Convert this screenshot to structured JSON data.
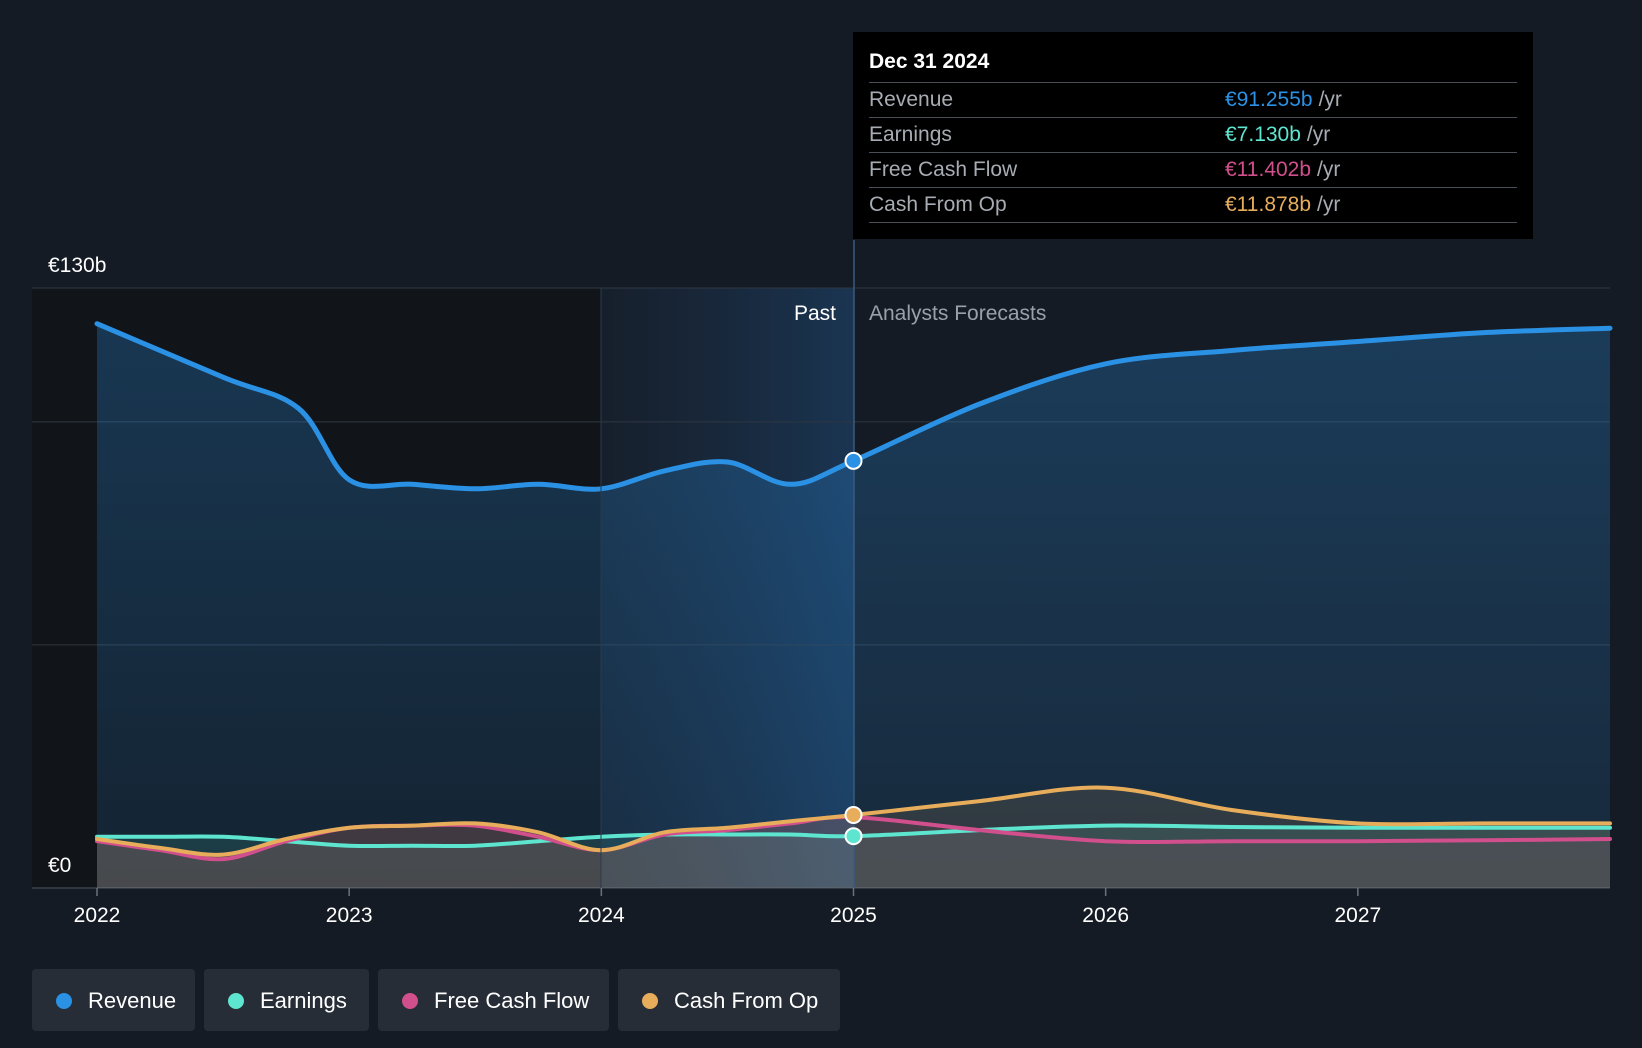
{
  "chart_data": {
    "type": "line",
    "y_axis": {
      "min": 0,
      "max": 130,
      "top_label": "€130b",
      "bottom_label": "€0"
    },
    "x_ticks": [
      "2022",
      "2023",
      "2024",
      "2025",
      "2026",
      "2027"
    ],
    "x_range": [
      2022,
      2028.0
    ],
    "divider_x": 2025,
    "past_label": "Past",
    "forecast_label": "Analysts Forecasts",
    "series": [
      {
        "name": "Revenue",
        "color": "#2a91e4",
        "x": [
          2022,
          2022.5,
          2022.8,
          2023,
          2023.25,
          2023.5,
          2023.75,
          2024,
          2024.25,
          2024.5,
          2024.75,
          2025,
          2025.5,
          2026,
          2026.5,
          2027,
          2027.5,
          2028.0
        ],
        "y": [
          122,
          110,
          103,
          87,
          86,
          85,
          86,
          85,
          89,
          91,
          86,
          91.255,
          104,
          113,
          116,
          118,
          120,
          121
        ]
      },
      {
        "name": "Earnings",
        "color": "#5ee5cf",
        "x": [
          2022,
          2022.25,
          2022.5,
          2022.75,
          2023,
          2023.25,
          2023.5,
          2023.75,
          2024,
          2024.25,
          2024.5,
          2024.75,
          2025,
          2025.5,
          2026,
          2026.5,
          2027,
          2027.5,
          2028.0
        ],
        "y": [
          7,
          7,
          7,
          6,
          5,
          5,
          5,
          6,
          7,
          7.5,
          7.5,
          7.5,
          7.13,
          8.5,
          9.5,
          9.2,
          9.0,
          9.0,
          9.0
        ]
      },
      {
        "name": "Free Cash Flow",
        "color": "#d14f8c",
        "x": [
          2022,
          2022.25,
          2022.5,
          2022.75,
          2023,
          2023.25,
          2023.5,
          2023.75,
          2024,
          2024.25,
          2024.5,
          2024.75,
          2025,
          2025.5,
          2026,
          2026.5,
          2027,
          2027.5,
          2028.0
        ],
        "y": [
          6,
          4,
          2,
          6,
          9,
          9.5,
          9.5,
          7,
          4,
          7.5,
          8.5,
          10,
          11.402,
          8.5,
          6,
          6,
          6,
          6.2,
          6.5
        ]
      },
      {
        "name": "Cash From Op",
        "color": "#e7ad5b",
        "x": [
          2022,
          2022.25,
          2022.5,
          2022.75,
          2023,
          2023.25,
          2023.5,
          2023.75,
          2024,
          2024.25,
          2024.5,
          2024.75,
          2025,
          2025.5,
          2026,
          2026.5,
          2027,
          2027.5,
          2028.0
        ],
        "y": [
          6.5,
          4.5,
          3,
          6.5,
          9,
          9.5,
          10,
          8,
          4,
          8,
          9,
          10.5,
          11.878,
          15,
          18,
          13,
          10,
          10,
          10
        ]
      }
    ]
  },
  "tooltip": {
    "date": "Dec 31 2024",
    "rows": [
      {
        "label": "Revenue",
        "value": "€91.255b",
        "unit": "/yr",
        "color": "#2a91e4"
      },
      {
        "label": "Earnings",
        "value": "€7.130b",
        "unit": "/yr",
        "color": "#5ee5cf"
      },
      {
        "label": "Free Cash Flow",
        "value": "€11.402b",
        "unit": "/yr",
        "color": "#d14f8c"
      },
      {
        "label": "Cash From Op",
        "value": "€11.878b",
        "unit": "/yr",
        "color": "#e7ad5b"
      }
    ]
  },
  "legend": [
    {
      "label": "Revenue",
      "color": "#2a91e4"
    },
    {
      "label": "Earnings",
      "color": "#5ee5cf"
    },
    {
      "label": "Free Cash Flow",
      "color": "#d14f8c"
    },
    {
      "label": "Cash From Op",
      "color": "#e7ad5b"
    }
  ]
}
